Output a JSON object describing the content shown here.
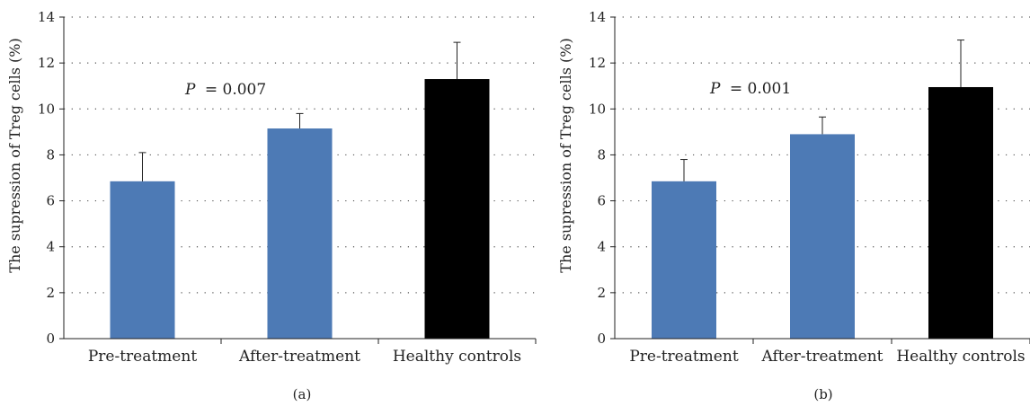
{
  "colors": {
    "treatment_bar": "#4d7ab5",
    "control_bar": "#000000",
    "axis": "#222222",
    "grid": "#555555"
  },
  "chart_data": [
    {
      "type": "bar",
      "panel_label": "(a)",
      "categories": [
        "Pre-treatment",
        "After-treatment",
        "Healthy controls"
      ],
      "values": [
        6.85,
        9.15,
        11.3
      ],
      "error_upper": [
        1.25,
        0.65,
        1.6
      ],
      "bar_colors": [
        "#4d7ab5",
        "#4d7ab5",
        "#000000"
      ],
      "ylabel": "The supression of Treg cells (%)",
      "ylim": [
        0,
        14
      ],
      "yticks": [
        "0",
        "2",
        "4",
        "6",
        "8",
        "10",
        "12",
        "14"
      ],
      "annotation": {
        "p_symbol": "P",
        "p_rest": "= 0.007"
      },
      "grid": "dotted horizontal"
    },
    {
      "type": "bar",
      "panel_label": "(b)",
      "categories": [
        "Pre-treatment",
        "After-treatment",
        "Healthy controls"
      ],
      "values": [
        6.85,
        8.9,
        10.95
      ],
      "error_upper": [
        0.95,
        0.75,
        2.05
      ],
      "bar_colors": [
        "#4d7ab5",
        "#4d7ab5",
        "#000000"
      ],
      "ylabel": "The supression of Treg cells (%)",
      "ylim": [
        0,
        14
      ],
      "yticks": [
        "0",
        "2",
        "4",
        "6",
        "8",
        "10",
        "12",
        "14"
      ],
      "annotation": {
        "p_symbol": "P",
        "p_rest": "= 0.001"
      },
      "grid": "dotted horizontal"
    }
  ]
}
